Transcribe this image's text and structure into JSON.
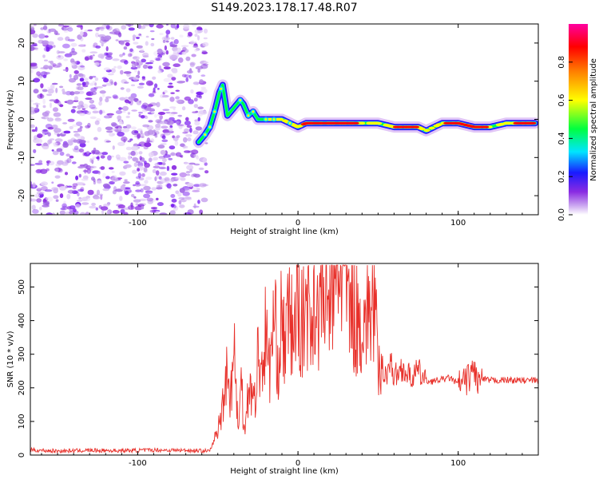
{
  "title": "S149.2023.178.17.48.R07",
  "colors": {
    "snr_line": "#e8302a",
    "grid_minor": "#cccccc",
    "colormap": [
      "#ffffff",
      "#c9a4f0",
      "#8a2be2",
      "#1a1aff",
      "#00e5ff",
      "#00ff40",
      "#ffff00",
      "#ff8000",
      "#ff0000",
      "#ff00a0"
    ]
  },
  "chart_data": [
    {
      "type": "heatmap",
      "title": "S149.2023.178.17.48.R07",
      "xlabel": "Height of straight line (km)",
      "ylabel": "Frequency (Hz)",
      "xlim": [
        -167,
        150
      ],
      "ylim": [
        -25,
        25
      ],
      "xticks": [
        -100,
        0,
        100
      ],
      "xtick_labels": [
        "-100",
        "0",
        "100"
      ],
      "yticks": [
        -20,
        -10,
        0,
        10,
        20
      ],
      "ytick_labels": [
        "-20",
        "-10",
        "0",
        "10",
        "20"
      ],
      "noise_region_x": [
        -167,
        -60
      ],
      "signal_track": {
        "x": [
          -62,
          -58,
          -55,
          -52,
          -49,
          -47,
          -44,
          -40,
          -36,
          -34,
          -31,
          -28,
          -25,
          -20,
          -15,
          -10,
          -5,
          0,
          5,
          10,
          20,
          30,
          40,
          50,
          60,
          70,
          75,
          80,
          85,
          90,
          95,
          100,
          110,
          120,
          130,
          140,
          148
        ],
        "y": [
          -6,
          -4,
          -2,
          2,
          7,
          9,
          1,
          3,
          5,
          4,
          1,
          2,
          0,
          0,
          0,
          0,
          -1,
          -2,
          -1,
          -1,
          -1,
          -1,
          -1,
          -1,
          -2,
          -2,
          -2,
          -3,
          -2,
          -1,
          -1,
          -1,
          -2,
          -2,
          -1,
          -1,
          -1
        ]
      },
      "colorbar": {
        "label": "Normalized spectral amplitude",
        "range": [
          0,
          1
        ],
        "ticks": [
          0.0,
          0.2,
          0.4,
          0.6,
          0.8
        ],
        "tick_labels": [
          "0.0",
          "0.2",
          "0.4",
          "0.6",
          "0.8"
        ]
      }
    },
    {
      "type": "line",
      "xlabel": "Height of straight line (km)",
      "ylabel": "SNR (10 * v/v)",
      "xlim": [
        -167,
        150
      ],
      "ylim": [
        0,
        570
      ],
      "xticks": [
        -100,
        0,
        100
      ],
      "xtick_labels": [
        "-100",
        "0",
        "100"
      ],
      "yticks": [
        0,
        100,
        200,
        300,
        400,
        500
      ],
      "ytick_labels": [
        "0",
        "100",
        "200",
        "300",
        "400",
        "500"
      ],
      "series": [
        {
          "x": [
            -167,
            -150,
            -130,
            -110,
            -90,
            -70,
            -55,
            -50,
            -47,
            -45,
            -42,
            -40,
            -38,
            -37,
            -35,
            -34,
            -32,
            -30,
            -28,
            -26,
            -25,
            -23,
            -20,
            -18,
            -15,
            -12,
            -10,
            -8,
            -5,
            -3,
            0,
            3,
            5,
            8,
            10,
            12,
            15,
            18,
            20,
            22,
            24,
            26,
            28,
            30,
            32,
            35,
            38,
            40,
            42,
            45,
            48,
            50,
            52,
            55,
            58,
            60,
            65,
            70,
            75,
            80,
            85,
            90,
            95,
            100,
            105,
            108,
            110,
            112,
            115,
            120,
            130,
            140,
            150
          ],
          "y": [
            15,
            12,
            14,
            13,
            15,
            14,
            12,
            70,
            150,
            260,
            180,
            320,
            150,
            60,
            250,
            80,
            140,
            230,
            150,
            200,
            300,
            240,
            370,
            250,
            400,
            280,
            420,
            310,
            440,
            330,
            470,
            360,
            490,
            370,
            500,
            390,
            520,
            410,
            540,
            450,
            520,
            555,
            560,
            540,
            420,
            430,
            380,
            410,
            400,
            440,
            450,
            220,
            270,
            240,
            280,
            230,
            260,
            230,
            250,
            220,
            220,
            225,
            230,
            210,
            220,
            240,
            260,
            215,
            225,
            222,
            223,
            222,
            222
          ]
        }
      ]
    }
  ]
}
